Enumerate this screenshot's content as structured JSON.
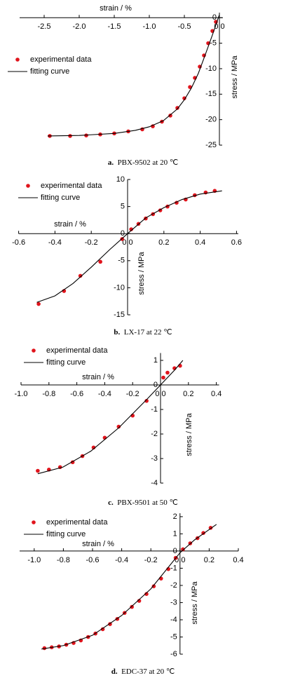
{
  "chart_data": [
    {
      "type": "scatter",
      "panel": "a.",
      "title": "PBX-9502 at 20 ℃",
      "xlabel": "strain / %",
      "ylabel": "stress / MPa",
      "xlim": [
        -2.85,
        0.05
      ],
      "ylim": [
        -25,
        1
      ],
      "xticks": [
        -2.5,
        {
          "value": -2,
          "label": "-2.0"
        },
        -1.5,
        {
          "value": -1,
          "label": "-1.0"
        },
        -0.5,
        {
          "value": 0,
          "label": "0.0"
        }
      ],
      "yticks": [
        -25,
        -20,
        -15,
        -10,
        -5,
        0
      ],
      "series": [
        {
          "name": "experimental data",
          "type": "scatter",
          "color": "#e0141c",
          "x": [
            -2.42,
            -2.13,
            -1.9,
            -1.7,
            -1.5,
            -1.3,
            -1.1,
            -0.95,
            -0.82,
            -0.7,
            -0.6,
            -0.5,
            -0.42,
            -0.35,
            -0.28,
            -0.22,
            -0.16,
            -0.1,
            -0.05
          ],
          "values": [
            -23.2,
            -23.2,
            -23.1,
            -22.9,
            -22.7,
            -22.3,
            -21.9,
            -21.3,
            -20.4,
            -19.2,
            -17.7,
            -15.8,
            -13.6,
            -11.8,
            -9.6,
            -7.4,
            -5.0,
            -2.6,
            -0.8
          ]
        },
        {
          "name": "fitting curve",
          "type": "line",
          "color": "#000000",
          "x": [
            -2.45,
            -2.0,
            -1.5,
            -1.2,
            -1.0,
            -0.8,
            -0.6,
            -0.5,
            -0.4,
            -0.3,
            -0.2,
            -0.1,
            0.0
          ],
          "values": [
            -23.2,
            -23.1,
            -22.7,
            -22.1,
            -21.4,
            -20.2,
            -17.9,
            -16.1,
            -13.8,
            -10.9,
            -7.2,
            -3.4,
            0.6
          ]
        }
      ]
    },
    {
      "type": "scatter",
      "panel": "b.",
      "title": "LX-17 at 22 ℃",
      "xlabel": "strain / %",
      "ylabel": "stress / MPa",
      "xlim": [
        -0.6,
        0.61
      ],
      "ylim": [
        -15,
        10
      ],
      "xticks": [
        -0.6,
        -0.4,
        -0.2,
        {
          "value": 0,
          "label": "0.0"
        },
        0.2,
        0.4,
        0.6
      ],
      "yticks": [
        -15,
        -10,
        -5,
        0,
        5,
        10
      ],
      "series": [
        {
          "name": "experimental data",
          "type": "scatter",
          "color": "#e0141c",
          "x": [
            -0.49,
            -0.35,
            -0.26,
            -0.15,
            -0.03,
            0.02,
            0.06,
            0.1,
            0.14,
            0.18,
            0.22,
            0.27,
            0.32,
            0.37,
            0.43,
            0.48
          ],
          "values": [
            -13.0,
            -10.6,
            -7.8,
            -5.2,
            -1.0,
            0.8,
            1.8,
            2.8,
            3.6,
            4.3,
            5.0,
            5.7,
            6.3,
            7.1,
            7.6,
            7.9
          ]
        },
        {
          "name": "fitting curve",
          "type": "line",
          "color": "#000000",
          "x": [
            -0.5,
            -0.4,
            -0.3,
            -0.2,
            -0.1,
            0.0,
            0.1,
            0.2,
            0.3,
            0.4,
            0.52
          ],
          "values": [
            -12.7,
            -11.5,
            -9.2,
            -6.2,
            -3.0,
            0.0,
            2.9,
            4.8,
            6.3,
            7.3,
            7.9
          ]
        }
      ]
    },
    {
      "type": "scatter",
      "panel": "c.",
      "title": "PBX-9501 at 50 ℃",
      "xlabel": "strain / %",
      "ylabel": "stress / MPa",
      "xlim": [
        -1.0,
        0.42
      ],
      "ylim": [
        -4,
        1.3
      ],
      "xticks": [
        {
          "value": -1,
          "label": "-1.0"
        },
        -0.8,
        -0.6,
        -0.4,
        -0.2,
        {
          "value": 0,
          "label": "0.0"
        },
        0.2,
        0.4
      ],
      "yticks": [
        -4,
        -3,
        -2,
        -1,
        0,
        1
      ],
      "series": [
        {
          "name": "experimental data",
          "type": "scatter",
          "color": "#e0141c",
          "x": [
            -0.88,
            -0.8,
            -0.72,
            -0.63,
            -0.56,
            -0.48,
            -0.4,
            -0.3,
            -0.2,
            -0.1,
            0.02,
            0.05,
            0.1,
            0.14
          ],
          "values": [
            -3.5,
            -3.45,
            -3.35,
            -3.15,
            -2.9,
            -2.55,
            -2.15,
            -1.7,
            -1.25,
            -0.65,
            0.3,
            0.5,
            0.68,
            0.78
          ]
        },
        {
          "name": "fitting curve",
          "type": "line",
          "color": "#000000",
          "x": [
            -0.88,
            -0.7,
            -0.5,
            -0.3,
            -0.1,
            0.0,
            0.1,
            0.16
          ],
          "values": [
            -3.62,
            -3.35,
            -2.7,
            -1.75,
            -0.6,
            0.0,
            0.6,
            1.0
          ]
        }
      ]
    },
    {
      "type": "scatter",
      "panel": "d.",
      "title": "EDC-37 at 20 ℃",
      "xlabel": "strain / %",
      "ylabel": "stress / MPa",
      "xlim": [
        -1.1,
        0.4
      ],
      "ylim": [
        -6,
        2.2
      ],
      "xticks": [
        {
          "value": -1,
          "label": "-1.0"
        },
        -0.8,
        -0.6,
        -0.4,
        -0.2,
        {
          "value": 0,
          "label": "0.0"
        },
        0.2,
        0.4
      ],
      "yticks": [
        -6,
        -5,
        -4,
        -3,
        -2,
        -1,
        0,
        1,
        2
      ],
      "series": [
        {
          "name": "experimental data",
          "type": "scatter",
          "color": "#e0141c",
          "x": [
            -0.93,
            -0.88,
            -0.83,
            -0.78,
            -0.73,
            -0.68,
            -0.63,
            -0.58,
            -0.53,
            -0.48,
            -0.43,
            -0.38,
            -0.33,
            -0.28,
            -0.23,
            -0.18,
            -0.13,
            -0.08,
            -0.03,
            0.02,
            0.07,
            0.12,
            0.16,
            0.21
          ],
          "values": [
            -5.65,
            -5.6,
            -5.55,
            -5.45,
            -5.35,
            -5.2,
            -5.0,
            -4.8,
            -4.55,
            -4.25,
            -3.95,
            -3.6,
            -3.25,
            -2.9,
            -2.5,
            -2.05,
            -1.6,
            -1.05,
            -0.4,
            0.1,
            0.45,
            0.75,
            1.05,
            1.35
          ]
        },
        {
          "name": "fitting curve",
          "type": "line",
          "color": "#000000",
          "x": [
            -0.95,
            -0.8,
            -0.6,
            -0.4,
            -0.2,
            0.0,
            0.1,
            0.25
          ],
          "values": [
            -5.7,
            -5.5,
            -4.9,
            -3.75,
            -2.2,
            -0.1,
            0.65,
            1.55
          ]
        }
      ]
    }
  ]
}
